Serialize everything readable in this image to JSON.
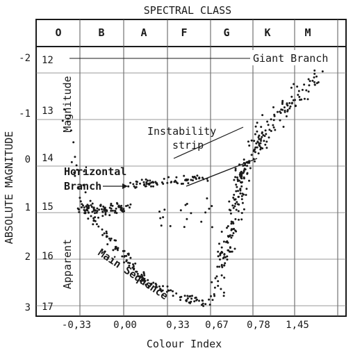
{
  "chart_data": {
    "type": "scatter",
    "title": "SPECTRAL CLASS",
    "xlabel": "Colour Index",
    "ylabel_left": "ABSOLUTE MAGNITUDE",
    "ylabel_inner_top": "Magnitude",
    "ylabel_inner_bottom": "Apparent",
    "spectral_classes": [
      "O",
      "B",
      "A",
      "F",
      "G",
      "K",
      "M"
    ],
    "x_ticks": [
      "-0,33",
      "0,00",
      "0,33",
      "0,67",
      "0,78",
      "1,45"
    ],
    "abs_mag_ticks": [
      "-2",
      "-1",
      "0",
      "1",
      "2",
      "3"
    ],
    "app_mag_ticks": [
      "12",
      "13",
      "14",
      "15",
      "16",
      "17"
    ],
    "annotations": {
      "giant_branch": "Giant Branch",
      "instability_line1": "Instability",
      "instability_line2": "strip",
      "horizontal_line1": "Horizontal",
      "horizontal_line2": "Branch",
      "main_sequence": "Main Sequence"
    },
    "grid": true,
    "legend": "none"
  }
}
